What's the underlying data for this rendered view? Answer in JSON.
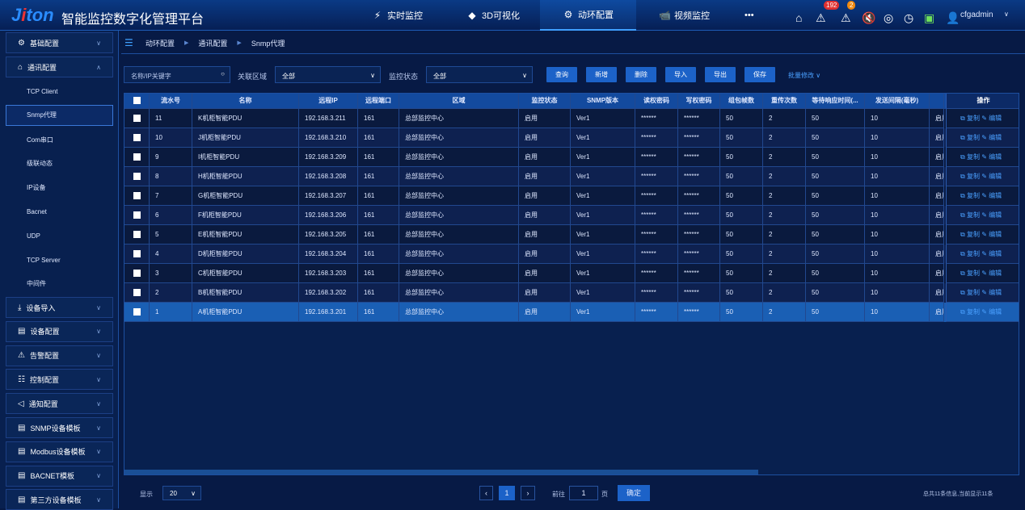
{
  "header": {
    "logo": "Jiton",
    "title": "智能监控数字化管理平台",
    "nav": [
      {
        "label": "实时监控",
        "icon": "lightning-icon"
      },
      {
        "label": "3D可视化",
        "icon": "cube-icon"
      },
      {
        "label": "动环配置",
        "icon": "gear-icon",
        "active": true
      },
      {
        "label": "视频监控",
        "icon": "camera-icon"
      }
    ],
    "more": "•••",
    "alarm_count": "192",
    "warn_count": "2",
    "user": "cfgadmin"
  },
  "sidebar": {
    "top": [
      {
        "label": "基础配置",
        "icon": "gear-icon"
      },
      {
        "label": "通讯配置",
        "icon": "home-icon",
        "expanded": true
      }
    ],
    "sub": [
      "TCP Client",
      "Snmp代理",
      "Com串口",
      "级联动态",
      "IP设备",
      "Bacnet",
      "UDP",
      "TCP Server",
      "中间件"
    ],
    "selected": "Snmp代理",
    "bottom": [
      {
        "label": "设备导入",
        "icon": "import-icon"
      },
      {
        "label": "设备配置",
        "icon": "document-icon"
      },
      {
        "label": "告警配置",
        "icon": "warning-icon"
      },
      {
        "label": "控制配置",
        "icon": "sliders-icon"
      },
      {
        "label": "通知配置",
        "icon": "speaker-icon"
      },
      {
        "label": "SNMP设备模板",
        "icon": "template-icon"
      },
      {
        "label": "Modbus设备模板",
        "icon": "template-icon"
      },
      {
        "label": "BACNET模板",
        "icon": "template-icon"
      },
      {
        "label": "第三方设备模板",
        "icon": "template-icon"
      }
    ]
  },
  "breadcrumb": [
    "动环配置",
    "通讯配置",
    "Snmp代理"
  ],
  "toolbar": {
    "search_placeholder": "名称/IP关键字",
    "area_label": "关联区域",
    "area_value": "全部",
    "status_label": "监控状态",
    "status_value": "全部",
    "buttons": [
      "查询",
      "新增",
      "删除",
      "导入",
      "导出",
      "保存"
    ],
    "batch": "批量修改"
  },
  "table": {
    "columns": [
      "流水号",
      "名称",
      "远程IP",
      "远程端口",
      "区域",
      "监控状态",
      "SNMP版本",
      "读权密码",
      "写权密码",
      "组包帧数",
      "重传次数",
      "等待响应时间(...",
      "发送间隔(毫秒)",
      "",
      "操作"
    ],
    "rows": [
      [
        "11",
        "K机柜智能PDU",
        "192.168.3.211",
        "161",
        "总部监控中心",
        "启用",
        "Ver1",
        "******",
        "******",
        "50",
        "2",
        "50",
        "10",
        "启用"
      ],
      [
        "10",
        "J机柜智能PDU",
        "192.168.3.210",
        "161",
        "总部监控中心",
        "启用",
        "Ver1",
        "******",
        "******",
        "50",
        "2",
        "50",
        "10",
        "启用"
      ],
      [
        "9",
        "I机柜智能PDU",
        "192.168.3.209",
        "161",
        "总部监控中心",
        "启用",
        "Ver1",
        "******",
        "******",
        "50",
        "2",
        "50",
        "10",
        "启用"
      ],
      [
        "8",
        "H机柜智能PDU",
        "192.168.3.208",
        "161",
        "总部监控中心",
        "启用",
        "Ver1",
        "******",
        "******",
        "50",
        "2",
        "50",
        "10",
        "启用"
      ],
      [
        "7",
        "G机柜智能PDU",
        "192.168.3.207",
        "161",
        "总部监控中心",
        "启用",
        "Ver1",
        "******",
        "******",
        "50",
        "2",
        "50",
        "10",
        "启用"
      ],
      [
        "6",
        "F机柜智能PDU",
        "192.168.3.206",
        "161",
        "总部监控中心",
        "启用",
        "Ver1",
        "******",
        "******",
        "50",
        "2",
        "50",
        "10",
        "启用"
      ],
      [
        "5",
        "E机柜智能PDU",
        "192.168.3.205",
        "161",
        "总部监控中心",
        "启用",
        "Ver1",
        "******",
        "******",
        "50",
        "2",
        "50",
        "10",
        "启用"
      ],
      [
        "4",
        "D机柜智能PDU",
        "192.168.3.204",
        "161",
        "总部监控中心",
        "启用",
        "Ver1",
        "******",
        "******",
        "50",
        "2",
        "50",
        "10",
        "启用"
      ],
      [
        "3",
        "C机柜智能PDU",
        "192.168.3.203",
        "161",
        "总部监控中心",
        "启用",
        "Ver1",
        "******",
        "******",
        "50",
        "2",
        "50",
        "10",
        "启用"
      ],
      [
        "2",
        "B机柜智能PDU",
        "192.168.3.202",
        "161",
        "总部监控中心",
        "启用",
        "Ver1",
        "******",
        "******",
        "50",
        "2",
        "50",
        "10",
        "启用"
      ],
      [
        "1",
        "A机柜智能PDU",
        "192.168.3.201",
        "161",
        "总部监控中心",
        "启用",
        "Ver1",
        "******",
        "******",
        "50",
        "2",
        "50",
        "10",
        "启用"
      ]
    ],
    "selected_row": 10,
    "copy": "复制",
    "edit": "编辑"
  },
  "footer": {
    "show_label": "显示",
    "page_size": "20",
    "current_page": "1",
    "goto_label": "前往",
    "goto_value": "1",
    "page_unit": "页",
    "confirm": "确定",
    "summary": "总共11条信息,当前显示11条"
  },
  "colors": {
    "accent": "#1c62c8",
    "selected_row": "#1a5fb4",
    "bg": "#071a45"
  }
}
